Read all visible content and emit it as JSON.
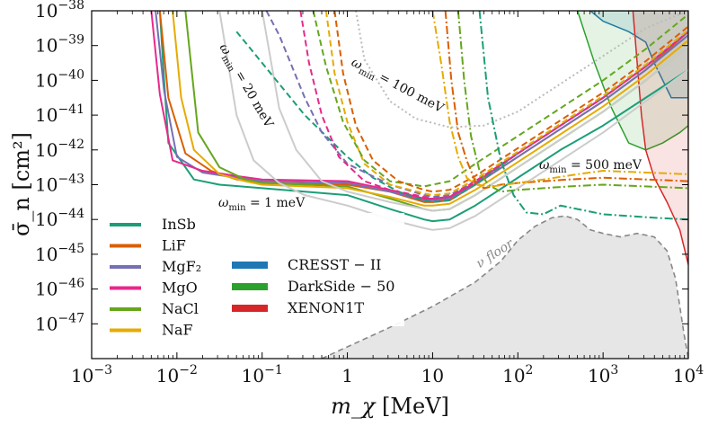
{
  "chart_data": {
    "type": "line",
    "title": "",
    "xlabel": "m_χ [MeV]",
    "ylabel": "σ̄_n [cm²]",
    "xscale": "log",
    "yscale": "log",
    "xlim_exp": [
      -3,
      4
    ],
    "ylim_exp": [
      -48,
      -38
    ],
    "x_ticks": [
      {
        "base": "10",
        "exp": "−3",
        "value": 0.001
      },
      {
        "base": "10",
        "exp": "−2",
        "value": 0.01
      },
      {
        "base": "10",
        "exp": "−1",
        "value": 0.1
      },
      {
        "base": "1",
        "exp": "",
        "value": 1
      },
      {
        "base": "10",
        "exp": "",
        "value": 10
      },
      {
        "base": "10",
        "exp": "2",
        "value": 100
      },
      {
        "base": "10",
        "exp": "3",
        "value": 1000
      },
      {
        "base": "10",
        "exp": "4",
        "value": 10000
      }
    ],
    "y_ticks": [
      {
        "base": "10",
        "exp": "−38",
        "value": -38
      },
      {
        "base": "10",
        "exp": "−39",
        "value": -39
      },
      {
        "base": "10",
        "exp": "−40",
        "value": -40
      },
      {
        "base": "10",
        "exp": "−41",
        "value": -41
      },
      {
        "base": "10",
        "exp": "−42",
        "value": -42
      },
      {
        "base": "10",
        "exp": "−43",
        "value": -43
      },
      {
        "base": "10",
        "exp": "−44",
        "value": -44
      },
      {
        "base": "10",
        "exp": "−45",
        "value": -45
      },
      {
        "base": "10",
        "exp": "−46",
        "value": -46
      },
      {
        "base": "10",
        "exp": "−47",
        "value": -47
      }
    ],
    "grid": false,
    "legend_materials": [
      {
        "label": "InSb",
        "color": "#1b9e77"
      },
      {
        "label": "LiF",
        "color": "#d95f02"
      },
      {
        "label": "MgF₂",
        "color": "#7570b3"
      },
      {
        "label": "MgO",
        "color": "#e7298a"
      },
      {
        "label": "NaCl",
        "color": "#66a61e"
      },
      {
        "label": "NaF",
        "color": "#e6ab02"
      }
    ],
    "legend_experiments": [
      {
        "label": "CRESST − II",
        "color": "#1f77b4"
      },
      {
        "label": "DarkSide − 50",
        "color": "#2ca02c"
      },
      {
        "label": "XENON1T",
        "color": "#d62728"
      }
    ],
    "annotations": [
      {
        "key": "w1",
        "label": "ω",
        "sub": "min",
        "value": " = 1 meV"
      },
      {
        "key": "w20",
        "label": "ω",
        "sub": "min",
        "value": " = 20 meV"
      },
      {
        "key": "w100",
        "label": "ω",
        "sub": "min",
        "value": " = 100 meV"
      },
      {
        "key": "w500",
        "label": "ω",
        "sub": "min",
        "value": " = 500 meV"
      }
    ],
    "nu_floor_label": "ν floor",
    "series": [
      {
        "name": "InSb",
        "style": "solid",
        "color": "#1b9e77",
        "x": [
          -2.2,
          -2.15,
          -2.1,
          -1.8,
          -1.5,
          -1,
          0,
          0.5,
          0.9,
          1,
          1.2,
          1.5,
          2,
          2.5,
          3,
          3.5,
          4
        ],
        "y": [
          -38,
          -40,
          -41.8,
          -42.85,
          -43.0,
          -43.1,
          -43.3,
          -43.7,
          -44.0,
          -44.05,
          -44.0,
          -43.6,
          -42.8,
          -42.0,
          -41.3,
          -40.5,
          -39.7
        ]
      },
      {
        "name": "LiF",
        "style": "solid",
        "color": "#d95f02",
        "x": [
          -2.2,
          -2.1,
          -1.9,
          -1.6,
          -1.3,
          -1,
          0,
          0.5,
          0.9,
          1,
          1.2,
          1.5,
          2,
          2.5,
          3,
          3.5,
          4
        ],
        "y": [
          -38,
          -40.5,
          -42.1,
          -42.6,
          -42.85,
          -42.95,
          -43.0,
          -43.2,
          -43.5,
          -43.5,
          -43.45,
          -43.0,
          -42.2,
          -41.4,
          -40.6,
          -39.7,
          -38.6
        ]
      },
      {
        "name": "MgF₂",
        "style": "solid",
        "color": "#7570b3",
        "x": [
          -2.25,
          -2.15,
          -2,
          -1.7,
          -1.3,
          -1,
          0,
          0.5,
          0.9,
          1,
          1.2,
          1.5,
          2,
          2.5,
          3,
          3.5,
          4
        ],
        "y": [
          -38,
          -40.3,
          -42.2,
          -42.65,
          -42.8,
          -42.9,
          -42.95,
          -43.2,
          -43.45,
          -43.45,
          -43.4,
          -43.0,
          -42.2,
          -41.4,
          -40.6,
          -39.7,
          -38.7
        ]
      },
      {
        "name": "MgO",
        "style": "solid",
        "color": "#e7298a",
        "x": [
          -2.3,
          -2.2,
          -2.05,
          -1.7,
          -1.3,
          -1,
          0,
          0.5,
          0.9,
          1,
          1.2,
          1.5,
          2,
          2.5,
          3,
          3.5,
          4
        ],
        "y": [
          -38,
          -40.4,
          -42.3,
          -42.6,
          -42.75,
          -42.85,
          -42.9,
          -43.15,
          -43.4,
          -43.4,
          -43.35,
          -42.95,
          -42.1,
          -41.3,
          -40.5,
          -39.6,
          -38.6
        ]
      },
      {
        "name": "NaCl",
        "style": "solid",
        "color": "#66a61e",
        "x": [
          -1.9,
          -1.75,
          -1.5,
          -1.2,
          -1,
          0,
          0.5,
          0.9,
          1,
          1.2,
          1.5,
          2,
          2.5,
          3,
          3.5,
          4
        ],
        "y": [
          -38,
          -41.5,
          -42.5,
          -42.85,
          -42.95,
          -43.05,
          -43.4,
          -43.7,
          -43.75,
          -43.7,
          -43.3,
          -42.5,
          -41.7,
          -40.9,
          -40.0,
          -39.0
        ]
      },
      {
        "name": "NaF",
        "style": "solid",
        "color": "#e6ab02",
        "x": [
          -2.05,
          -1.95,
          -1.8,
          -1.5,
          -1.2,
          -1,
          0,
          0.5,
          0.9,
          1,
          1.2,
          1.5,
          2,
          2.5,
          3,
          3.5,
          4
        ],
        "y": [
          -38,
          -40.5,
          -42.0,
          -42.7,
          -42.9,
          -43.0,
          -43.1,
          -43.35,
          -43.6,
          -43.6,
          -43.55,
          -43.15,
          -42.35,
          -41.55,
          -40.75,
          -39.85,
          -38.85
        ]
      },
      {
        "name": "",
        "style": "solid",
        "color": "#cccccc",
        "x": [
          -1.5,
          -1.3,
          -1.1,
          -0.8,
          -0.5,
          0,
          0.5,
          0.9,
          1,
          1.2,
          1.5,
          2,
          2.5,
          3,
          3.5,
          4
        ],
        "y": [
          -38,
          -41,
          -42.3,
          -42.95,
          -43.3,
          -43.6,
          -44.0,
          -44.25,
          -44.3,
          -44.25,
          -43.9,
          -43.1,
          -42.3,
          -41.5,
          -40.6,
          -39.7
        ]
      },
      {
        "name": "",
        "style": "solid",
        "color": "#cccccc",
        "x": [
          -1.0,
          -0.8,
          -0.6,
          -0.3,
          0,
          0.5,
          0.9,
          1,
          1.2,
          1.5,
          2,
          2.5,
          3,
          3.5,
          4
        ],
        "y": [
          -38,
          -40.8,
          -42.0,
          -42.9,
          -43.2,
          -43.5,
          -43.7,
          -43.75,
          -43.7,
          -43.3,
          -42.5,
          -41.7,
          -40.9,
          -40.0,
          -39.0
        ]
      },
      {
        "name": "",
        "style": "dashed",
        "color": "#1b9e77",
        "x": [
          -1.3,
          -0.5,
          0,
          0.3,
          0.6,
          0.9,
          1,
          1.2,
          1.5,
          2,
          2.5,
          3,
          3.5,
          4
        ],
        "y": [
          -38.6,
          -41.0,
          -42.2,
          -42.8,
          -43.2,
          -43.45,
          -43.5,
          -43.45,
          -43.0,
          -42.1,
          -41.3,
          -40.5,
          -39.6,
          -38.6
        ]
      },
      {
        "name": "",
        "style": "dashed",
        "color": "#7570b3",
        "x": [
          -0.95,
          -0.8,
          -0.5,
          -0.3,
          0,
          0.5,
          0.9,
          1,
          1.2,
          1.5,
          2,
          2.5,
          3,
          3.5,
          4
        ],
        "y": [
          -38,
          -38.7,
          -40.5,
          -41.5,
          -42.4,
          -43.0,
          -43.3,
          -43.35,
          -43.3,
          -42.9,
          -42.1,
          -41.3,
          -40.5,
          -39.6,
          -38.6
        ]
      },
      {
        "name": "",
        "style": "dashed",
        "color": "#e7298a",
        "x": [
          -0.55,
          -0.45,
          -0.3,
          -0.1,
          0.2,
          0.5,
          0.9,
          1,
          1.2,
          1.5,
          2,
          2.5,
          3,
          3.5,
          4
        ],
        "y": [
          -38,
          -39.5,
          -41.0,
          -42.2,
          -42.9,
          -43.15,
          -43.35,
          -43.4,
          -43.35,
          -42.9,
          -42.1,
          -41.3,
          -40.5,
          -39.6,
          -38.6
        ]
      },
      {
        "name": "",
        "style": "dashed",
        "color": "#e6ab02",
        "x": [
          -0.25,
          -0.15,
          0,
          0.2,
          0.5,
          0.9,
          1,
          1.2,
          1.5,
          2,
          2.5,
          3,
          3.5,
          4
        ],
        "y": [
          -38,
          -39.8,
          -41.2,
          -42.4,
          -43.0,
          -43.25,
          -43.3,
          -43.25,
          -42.85,
          -42.05,
          -41.25,
          -40.45,
          -39.55,
          -38.55
        ]
      },
      {
        "name": "",
        "style": "dashed",
        "color": "#66a61e",
        "x": [
          -0.4,
          -0.25,
          -0.05,
          0.2,
          0.5,
          0.9,
          1,
          1.2,
          1.5,
          2,
          2.5,
          3,
          3.5,
          4
        ],
        "y": [
          -38,
          -39.6,
          -41.2,
          -42.3,
          -42.9,
          -43.05,
          -43.0,
          -42.9,
          -42.4,
          -41.6,
          -40.8,
          -40.0,
          -39.1,
          -38.1
        ]
      },
      {
        "name": "",
        "style": "dashed",
        "color": "#d95f02",
        "x": [
          -0.15,
          -0.05,
          0.1,
          0.3,
          0.6,
          0.9,
          1,
          1.2,
          1.5,
          2,
          2.5,
          3,
          3.5,
          4
        ],
        "y": [
          -38,
          -39.8,
          -41.3,
          -42.3,
          -42.9,
          -43.15,
          -43.2,
          -43.15,
          -42.75,
          -41.95,
          -41.15,
          -40.35,
          -39.45,
          -38.45
        ]
      },
      {
        "name": "",
        "style": "dotted",
        "color": "#bbbbbb",
        "x": [
          0.1,
          0.2,
          0.5,
          0.8,
          1.2,
          1.6,
          2.0,
          2.5,
          3,
          3.5,
          4
        ],
        "y": [
          -38,
          -39.4,
          -40.6,
          -41.1,
          -41.35,
          -41.3,
          -40.9,
          -40.1,
          -39.3,
          -38.5,
          -38
        ]
      },
      {
        "name": "",
        "style": "dashdot",
        "color": "#d95f02",
        "x": [
          1.15,
          1.22,
          1.3,
          1.4,
          1.5,
          1.6,
          1.8,
          2.0,
          2.3,
          2.6,
          3,
          3.5,
          4
        ],
        "y": [
          -38,
          -40,
          -41.5,
          -42.3,
          -42.9,
          -43.1,
          -43.0,
          -42.95,
          -42.9,
          -42.85,
          -42.8,
          -42.85,
          -42.9
        ]
      },
      {
        "name": "",
        "style": "dashdot",
        "color": "#66a61e",
        "x": [
          1.3,
          1.37,
          1.45,
          1.55,
          1.65,
          1.8,
          2.0,
          2.3,
          2.6,
          3,
          3.5,
          4
        ],
        "y": [
          -38,
          -40,
          -41.6,
          -42.6,
          -43.0,
          -43.2,
          -43.15,
          -43.1,
          -43.05,
          -43.0,
          -43.05,
          -43.1
        ]
      },
      {
        "name": "",
        "style": "dashdot",
        "color": "#1b9e77",
        "x": [
          1.55,
          1.65,
          1.8,
          1.95,
          2.1,
          2.3,
          2.5,
          2.7,
          3,
          3.3,
          3.6,
          4
        ],
        "y": [
          -38,
          -40.5,
          -42.3,
          -43.3,
          -43.8,
          -43.85,
          -43.6,
          -43.7,
          -43.85,
          -43.9,
          -43.95,
          -44.0
        ]
      },
      {
        "name": "",
        "style": "dashdot",
        "color": "#e6ab02",
        "x": [
          1.0,
          1.1,
          1.2,
          1.3,
          1.4,
          1.5,
          1.7,
          2.0,
          2.3,
          2.7,
          3,
          3.5,
          4
        ],
        "y": [
          -38,
          -39.5,
          -41.2,
          -42.2,
          -42.8,
          -43.0,
          -43.05,
          -42.95,
          -42.85,
          -42.7,
          -42.6,
          -42.65,
          -42.7
        ]
      }
    ],
    "regions": [
      {
        "name": "CRESST − II",
        "color": "#1f77b4",
        "x": [
          2.85,
          3.0,
          3.3,
          3.5,
          3.6,
          3.8,
          4,
          4,
          3.6,
          3.3,
          3.0,
          2.85
        ],
        "y": [
          -38,
          -38.3,
          -38.6,
          -38.9,
          -39.5,
          -40.5,
          -40.5,
          -38,
          -38,
          -38,
          -38,
          -38
        ]
      },
      {
        "name": "DarkSide − 50",
        "color": "#2ca02c",
        "x": [
          2.7,
          2.9,
          3.1,
          3.3,
          3.5,
          3.7,
          3.9,
          4,
          4,
          2.7
        ],
        "y": [
          -38,
          -39.5,
          -40.8,
          -41.8,
          -42.0,
          -41.8,
          -41.5,
          -41.3,
          -38,
          -38
        ]
      },
      {
        "name": "XENON1T",
        "color": "#d62728",
        "x": [
          3.35,
          3.4,
          3.45,
          3.5,
          3.6,
          3.75,
          3.9,
          4,
          4,
          3.35
        ],
        "y": [
          -38,
          -39.5,
          -41.0,
          -42.0,
          -42.8,
          -43.5,
          -44.3,
          -45.3,
          -38,
          -38
        ]
      }
    ],
    "neutrino_floor": {
      "x": [
        -0.3,
        0.5,
        1.0,
        1.5,
        1.8,
        2.0,
        2.2,
        2.4,
        2.55,
        2.7,
        2.85,
        3.0,
        3.2,
        3.4,
        3.6,
        3.75,
        3.85,
        3.9,
        3.95,
        4
      ],
      "y": [
        -48,
        -47.1,
        -46.5,
        -45.8,
        -45.2,
        -44.6,
        -44.2,
        -43.95,
        -43.9,
        -44.0,
        -44.3,
        -44.4,
        -44.5,
        -44.4,
        -44.5,
        -44.9,
        -45.7,
        -46.5,
        -47.3,
        -48
      ]
    }
  }
}
